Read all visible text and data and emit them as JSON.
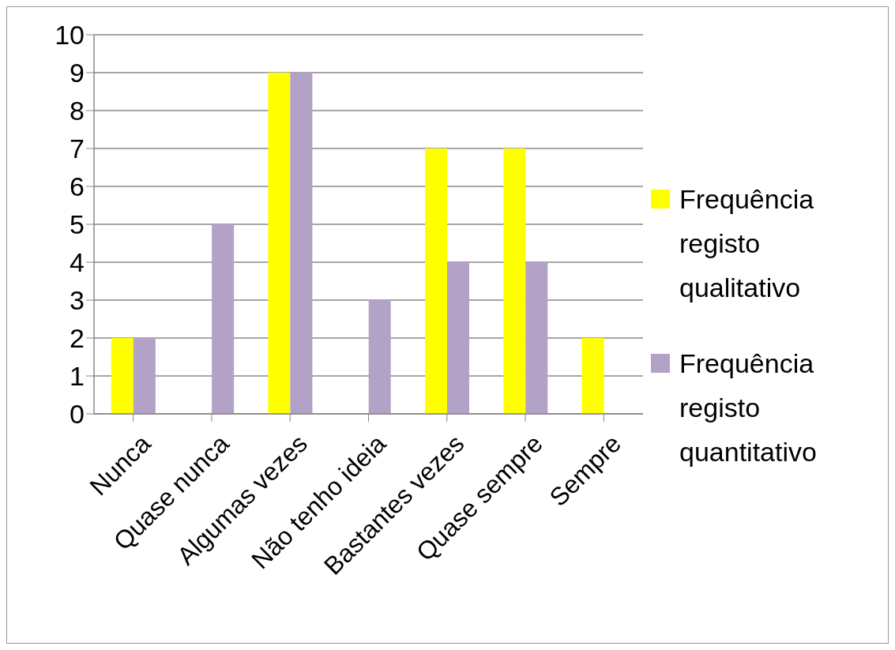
{
  "chart_data": {
    "type": "bar",
    "categories": [
      "Nunca",
      "Quase nunca",
      "Algumas vezes",
      "Não tenho ideia",
      "Bastantes vezes",
      "Quase sempre",
      "Sempre"
    ],
    "series": [
      {
        "name": "Frequência registo qualitativo",
        "color": "#ffff00",
        "values": [
          2,
          0,
          9,
          0,
          7,
          7,
          2
        ]
      },
      {
        "name": "Frequência registo quantitativo",
        "color": "#b3a2c7",
        "values": [
          2,
          5,
          9,
          3,
          4,
          4,
          0
        ]
      }
    ],
    "ylim": [
      0,
      10
    ],
    "yticks": [
      0,
      1,
      2,
      3,
      4,
      5,
      6,
      7,
      8,
      9,
      10
    ],
    "grid": "y",
    "legend": "right"
  }
}
